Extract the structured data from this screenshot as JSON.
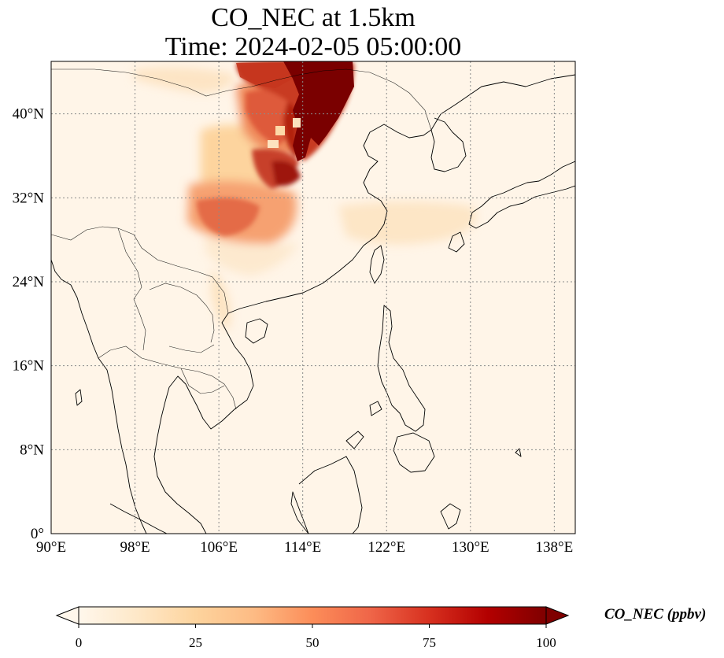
{
  "title": {
    "line1": "CO_NEC at 1.5km",
    "line2": "Time: 2024-02-05 05:00:00"
  },
  "map": {
    "lon_range": [
      90,
      140
    ],
    "lat_range": [
      0,
      45
    ],
    "lon_ticks": [
      "90°E",
      "98°E",
      "106°E",
      "114°E",
      "122°E",
      "130°E",
      "138°E"
    ],
    "lat_ticks": [
      "0°",
      "8°N",
      "16°N",
      "24°N",
      "32°N",
      "40°N"
    ],
    "gridlines": true,
    "colormap": "OrRd",
    "features": [
      "coastlines",
      "country-borders"
    ]
  },
  "colorbar": {
    "label": "CO_NEC (ppbv)",
    "ticks": [
      "0",
      "25",
      "50",
      "75",
      "100"
    ],
    "min": 0,
    "max": 100,
    "extend": "both",
    "colors": [
      "#fff7ec",
      "#fee8c8",
      "#fdd49e",
      "#fdbb84",
      "#fc8d59",
      "#ef6548",
      "#d7301f",
      "#b30000",
      "#7f0000"
    ]
  }
}
